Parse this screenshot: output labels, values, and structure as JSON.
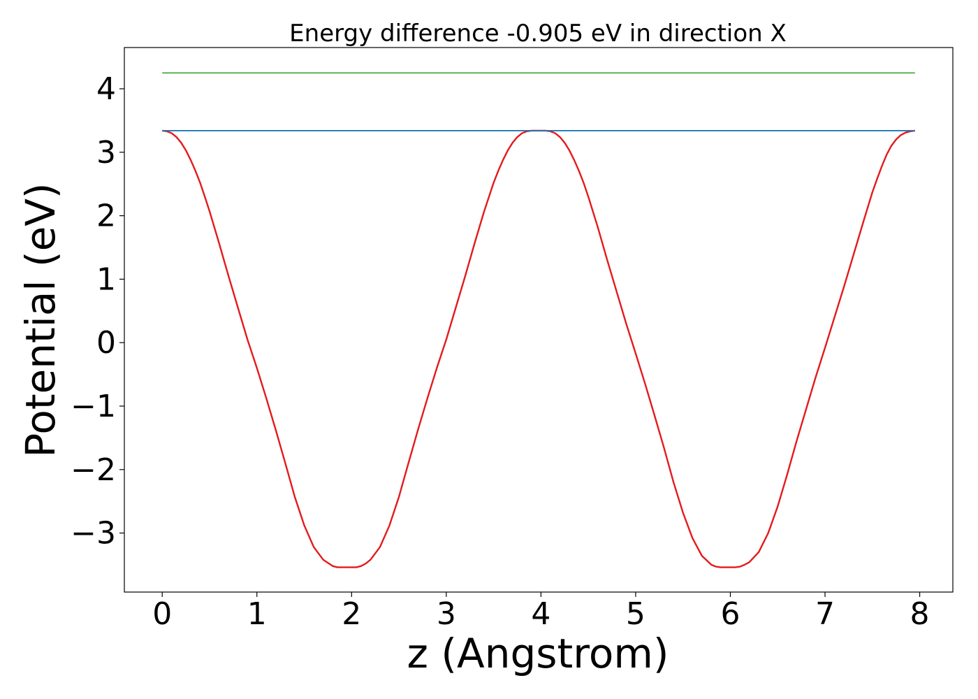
{
  "chart_data": {
    "type": "line",
    "title": "Energy difference -0.905 eV in direction X",
    "xlabel": "z (Angstrom)",
    "ylabel": "Potential (eV)",
    "xlim": [
      -0.4,
      8.35
    ],
    "ylim": [
      -3.93,
      4.65
    ],
    "xticks": [
      0,
      1,
      2,
      3,
      4,
      5,
      6,
      7,
      8
    ],
    "xtick_labels": [
      "0",
      "1",
      "2",
      "3",
      "4",
      "5",
      "6",
      "7",
      "8"
    ],
    "yticks": [
      -3,
      -2,
      -1,
      0,
      1,
      2,
      3,
      4
    ],
    "ytick_labels": [
      "−3",
      "−2",
      "−1",
      "0",
      "1",
      "2",
      "3",
      "4"
    ],
    "grid": false,
    "series": [
      {
        "color": "#e41a1c",
        "style": "solid",
        "x": [
          0,
          0.05,
          0.1,
          0.15,
          0.2,
          0.25,
          0.3,
          0.35,
          0.4,
          0.45,
          0.5,
          0.6,
          0.7,
          0.8,
          0.9,
          1.0,
          1.1,
          1.2,
          1.3,
          1.4,
          1.5,
          1.6,
          1.7,
          1.8,
          1.85,
          1.9,
          1.95,
          2.0,
          2.05,
          2.1,
          2.15,
          2.2,
          2.3,
          2.4,
          2.5,
          2.6,
          2.7,
          2.8,
          2.9,
          3.0,
          3.1,
          3.2,
          3.3,
          3.4,
          3.5,
          3.55,
          3.6,
          3.65,
          3.7,
          3.75,
          3.8,
          3.85,
          3.9,
          3.95,
          4.0,
          4.05,
          4.1,
          4.15,
          4.2,
          4.25,
          4.3,
          4.35,
          4.4,
          4.45,
          4.5,
          4.6,
          4.7,
          4.8,
          4.9,
          5.0,
          5.1,
          5.2,
          5.3,
          5.4,
          5.5,
          5.6,
          5.7,
          5.8,
          5.85,
          5.9,
          5.95,
          6.0,
          6.05,
          6.1,
          6.15,
          6.2,
          6.3,
          6.4,
          6.5,
          6.6,
          6.7,
          6.8,
          6.9,
          7.0,
          7.1,
          7.2,
          7.3,
          7.4,
          7.5,
          7.55,
          7.6,
          7.65,
          7.7,
          7.75,
          7.8,
          7.85,
          7.9,
          7.95
        ],
        "y": [
          3.34,
          3.33,
          3.3,
          3.24,
          3.15,
          3.03,
          2.88,
          2.71,
          2.52,
          2.3,
          2.07,
          1.57,
          1.05,
          0.55,
          0.05,
          -0.4,
          -0.88,
          -1.38,
          -1.9,
          -2.43,
          -2.88,
          -3.22,
          -3.42,
          -3.52,
          -3.54,
          -3.54,
          -3.54,
          -3.54,
          -3.54,
          -3.52,
          -3.48,
          -3.42,
          -3.22,
          -2.88,
          -2.43,
          -1.9,
          -1.38,
          -0.88,
          -0.4,
          0.05,
          0.55,
          1.05,
          1.57,
          2.07,
          2.52,
          2.71,
          2.88,
          3.03,
          3.15,
          3.24,
          3.3,
          3.33,
          3.34,
          3.34,
          3.34,
          3.34,
          3.33,
          3.3,
          3.24,
          3.15,
          3.03,
          2.88,
          2.71,
          2.52,
          2.3,
          1.82,
          1.3,
          0.8,
          0.3,
          -0.17,
          -0.65,
          -1.15,
          -1.66,
          -2.2,
          -2.68,
          -3.08,
          -3.36,
          -3.5,
          -3.53,
          -3.54,
          -3.54,
          -3.54,
          -3.54,
          -3.53,
          -3.5,
          -3.46,
          -3.3,
          -3.0,
          -2.58,
          -2.08,
          -1.55,
          -1.05,
          -0.55,
          -0.08,
          0.4,
          0.88,
          1.38,
          1.88,
          2.37,
          2.58,
          2.78,
          2.96,
          3.1,
          3.2,
          3.27,
          3.31,
          3.33,
          3.34
        ]
      },
      {
        "color": "#1f77b4",
        "style": "solid",
        "x": [
          0,
          7.95
        ],
        "y": [
          3.34,
          3.34
        ]
      },
      {
        "color": "#4daf4a",
        "style": "solid",
        "x": [
          0,
          7.95
        ],
        "y": [
          4.25,
          4.25
        ]
      }
    ]
  }
}
